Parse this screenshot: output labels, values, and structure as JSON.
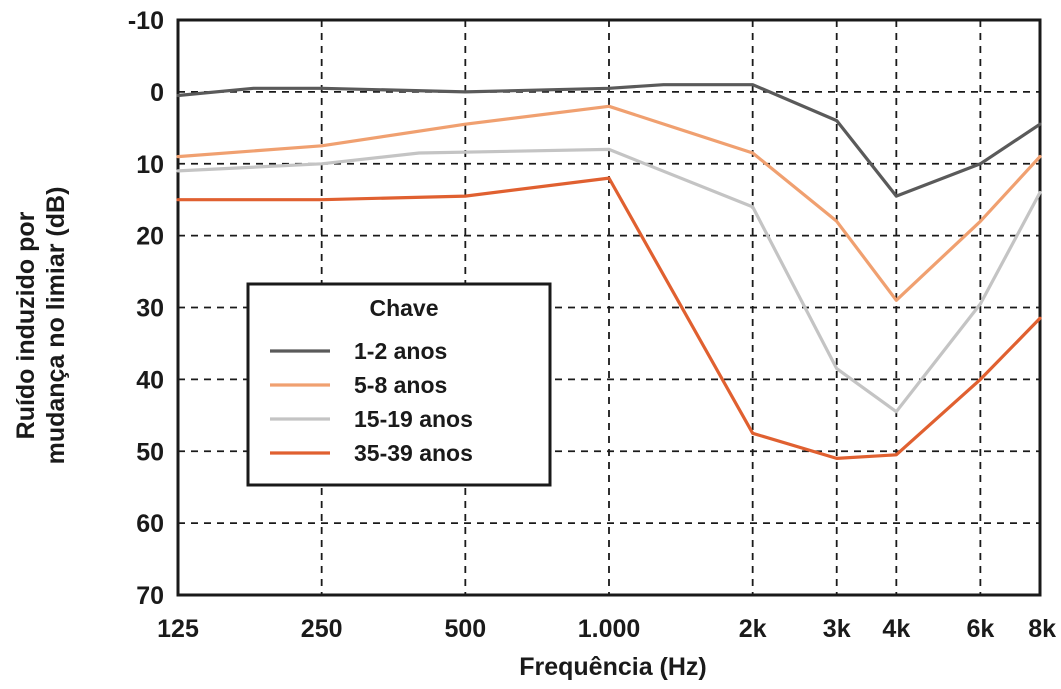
{
  "chart_data": {
    "type": "line",
    "title": "",
    "xlabel": "Frequência (Hz)",
    "ylabel_lines": [
      "Ruído induzido por",
      "mudança no limiar (dB)"
    ],
    "x_ticks": [
      {
        "label": "125",
        "freq": 125
      },
      {
        "label": "250",
        "freq": 250
      },
      {
        "label": "500",
        "freq": 500
      },
      {
        "label": "1.000",
        "freq": 1000
      },
      {
        "label": "2k",
        "freq": 2000
      },
      {
        "label": "3k",
        "freq": 3000
      },
      {
        "label": "4k",
        "freq": 4000
      },
      {
        "label": "6k",
        "freq": 6000
      },
      {
        "label": "8k",
        "freq": 8000
      }
    ],
    "y_ticks": [
      "-10",
      "0",
      "10",
      "20",
      "30",
      "40",
      "50",
      "60",
      "70"
    ],
    "ylim": [
      -10,
      70
    ],
    "y_inverted": true,
    "x_scale": "log",
    "grid": true,
    "legend": {
      "title": "Chave",
      "placement": "center-left"
    },
    "series": [
      {
        "name": "1-2 anos",
        "color": "#5a5a5a",
        "points": [
          [
            125,
            0.5
          ],
          [
            180,
            -0.5
          ],
          [
            250,
            -0.5
          ],
          [
            500,
            0
          ],
          [
            1000,
            -0.5
          ],
          [
            1300,
            -1
          ],
          [
            2000,
            -1
          ],
          [
            3000,
            4
          ],
          [
            4000,
            14.5
          ],
          [
            6000,
            10
          ],
          [
            8000,
            4.5
          ]
        ]
      },
      {
        "name": "5-8 anos",
        "color": "#f0a070",
        "points": [
          [
            125,
            9
          ],
          [
            250,
            7.5
          ],
          [
            500,
            4.5
          ],
          [
            1000,
            2
          ],
          [
            2000,
            8.5
          ],
          [
            3000,
            18
          ],
          [
            4000,
            29
          ],
          [
            6000,
            18
          ],
          [
            8000,
            9
          ]
        ]
      },
      {
        "name": "15-19 anos",
        "color": "#c4c4c4",
        "points": [
          [
            125,
            11
          ],
          [
            250,
            10
          ],
          [
            400,
            8.5
          ],
          [
            1000,
            8
          ],
          [
            2000,
            16
          ],
          [
            3000,
            38.5
          ],
          [
            4000,
            44.5
          ],
          [
            6000,
            29.5
          ],
          [
            8000,
            14
          ]
        ]
      },
      {
        "name": "35-39 anos",
        "color": "#e06030",
        "points": [
          [
            125,
            15
          ],
          [
            250,
            15
          ],
          [
            500,
            14.5
          ],
          [
            1000,
            12
          ],
          [
            2000,
            47.5
          ],
          [
            3000,
            51
          ],
          [
            4000,
            50.5
          ],
          [
            6000,
            40
          ],
          [
            8000,
            31.5
          ]
        ]
      }
    ]
  }
}
